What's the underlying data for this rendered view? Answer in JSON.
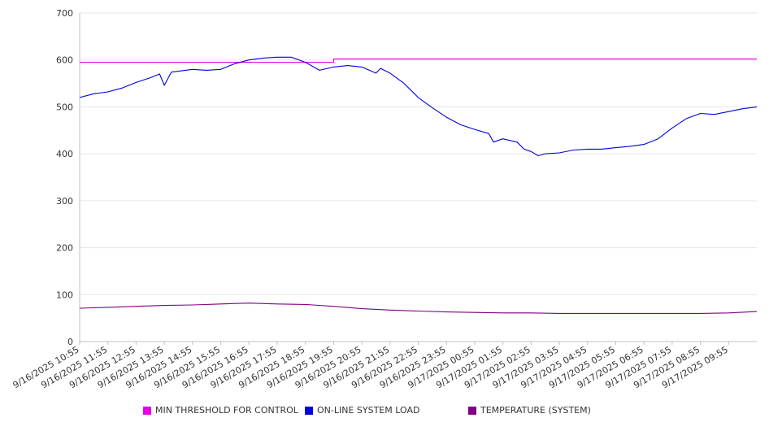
{
  "chart_data": {
    "type": "line",
    "ylim": [
      0,
      700
    ],
    "yticks": [
      0,
      100,
      200,
      300,
      400,
      500,
      600,
      700
    ],
    "xlim": [
      "9/16/2025 10:55",
      "9/17/2025 10:55"
    ],
    "xtick_labels": [
      "9/16/2025 10:55",
      "9/16/2025 11:55",
      "9/16/2025 12:55",
      "9/16/2025 13:55",
      "9/16/2025 14:55",
      "9/16/2025 15:55",
      "9/16/2025 16:55",
      "9/16/2025 17:55",
      "9/16/2025 18:55",
      "9/16/2025 19:55",
      "9/16/2025 20:55",
      "9/16/2025 21:55",
      "9/16/2025 22:55",
      "9/16/2025 23:55",
      "9/17/2025 00:55",
      "9/17/2025 01:55",
      "9/17/2025 02:55",
      "9/17/2025 03:55",
      "9/17/2025 04:55",
      "9/17/2025 05:55",
      "9/17/2025 06:55",
      "9/17/2025 07:55",
      "9/17/2025 08:55",
      "9/17/2025 09:55"
    ],
    "grid": true,
    "legend_position": "bottom",
    "series": [
      {
        "name": "MIN THRESHOLD FOR CONTROL",
        "color": "#e600e6",
        "points": [
          [
            "9/16/2025 10:55",
            595
          ],
          [
            "9/16/2025 19:55",
            595
          ],
          [
            "9/16/2025 19:55",
            602
          ],
          [
            "9/17/2025 10:55",
            602
          ]
        ]
      },
      {
        "name": "ON-LINE SYSTEM LOAD",
        "color": "#0000dd",
        "points": [
          [
            "9/16/2025 10:55",
            520
          ],
          [
            "9/16/2025 11:25",
            528
          ],
          [
            "9/16/2025 11:55",
            532
          ],
          [
            "9/16/2025 12:25",
            540
          ],
          [
            "9/16/2025 12:55",
            552
          ],
          [
            "9/16/2025 13:25",
            562
          ],
          [
            "9/16/2025 13:45",
            570
          ],
          [
            "9/16/2025 13:55",
            546
          ],
          [
            "9/16/2025 14:10",
            574
          ],
          [
            "9/16/2025 14:55",
            580
          ],
          [
            "9/16/2025 15:25",
            578
          ],
          [
            "9/16/2025 15:55",
            580
          ],
          [
            "9/16/2025 16:25",
            592
          ],
          [
            "9/16/2025 16:55",
            600
          ],
          [
            "9/16/2025 17:25",
            604
          ],
          [
            "9/16/2025 17:55",
            606
          ],
          [
            "9/16/2025 18:25",
            606
          ],
          [
            "9/16/2025 18:55",
            595
          ],
          [
            "9/16/2025 19:25",
            578
          ],
          [
            "9/16/2025 19:55",
            585
          ],
          [
            "9/16/2025 20:25",
            588
          ],
          [
            "9/16/2025 20:55",
            585
          ],
          [
            "9/16/2025 21:25",
            572
          ],
          [
            "9/16/2025 21:35",
            582
          ],
          [
            "9/16/2025 21:55",
            572
          ],
          [
            "9/16/2025 22:25",
            550
          ],
          [
            "9/16/2025 22:55",
            520
          ],
          [
            "9/16/2025 23:25",
            498
          ],
          [
            "9/16/2025 23:55",
            478
          ],
          [
            "9/17/2025 00:25",
            462
          ],
          [
            "9/17/2025 00:55",
            452
          ],
          [
            "9/17/2025 01:25",
            443
          ],
          [
            "9/17/2025 01:35",
            425
          ],
          [
            "9/17/2025 01:55",
            432
          ],
          [
            "9/17/2025 02:25",
            425
          ],
          [
            "9/17/2025 02:40",
            410
          ],
          [
            "9/17/2025 02:55",
            405
          ],
          [
            "9/17/2025 03:10",
            396
          ],
          [
            "9/17/2025 03:25",
            400
          ],
          [
            "9/17/2025 03:55",
            402
          ],
          [
            "9/17/2025 04:25",
            408
          ],
          [
            "9/17/2025 04:55",
            410
          ],
          [
            "9/17/2025 05:25",
            410
          ],
          [
            "9/17/2025 05:55",
            413
          ],
          [
            "9/17/2025 06:25",
            416
          ],
          [
            "9/17/2025 06:55",
            420
          ],
          [
            "9/17/2025 07:25",
            432
          ],
          [
            "9/17/2025 07:55",
            455
          ],
          [
            "9/17/2025 08:25",
            475
          ],
          [
            "9/17/2025 08:55",
            486
          ],
          [
            "9/17/2025 09:25",
            484
          ],
          [
            "9/17/2025 09:55",
            490
          ],
          [
            "9/17/2025 10:25",
            496
          ],
          [
            "9/17/2025 10:55",
            500
          ]
        ]
      },
      {
        "name": "TEMPERATURE (SYSTEM)",
        "color": "#800080",
        "points": [
          [
            "9/16/2025 10:55",
            71
          ],
          [
            "9/16/2025 11:55",
            73
          ],
          [
            "9/16/2025 12:55",
            75
          ],
          [
            "9/16/2025 13:55",
            77
          ],
          [
            "9/16/2025 14:55",
            78
          ],
          [
            "9/16/2025 15:55",
            80
          ],
          [
            "9/16/2025 16:55",
            82
          ],
          [
            "9/16/2025 17:55",
            80
          ],
          [
            "9/16/2025 18:55",
            79
          ],
          [
            "9/16/2025 19:55",
            75
          ],
          [
            "9/16/2025 20:55",
            70
          ],
          [
            "9/16/2025 21:55",
            67
          ],
          [
            "9/16/2025 22:55",
            65
          ],
          [
            "9/16/2025 23:55",
            63
          ],
          [
            "9/17/2025 00:55",
            62
          ],
          [
            "9/17/2025 01:55",
            61
          ],
          [
            "9/17/2025 02:55",
            61
          ],
          [
            "9/17/2025 03:55",
            60
          ],
          [
            "9/17/2025 04:55",
            60
          ],
          [
            "9/17/2025 05:55",
            60
          ],
          [
            "9/17/2025 06:55",
            60
          ],
          [
            "9/17/2025 07:55",
            60
          ],
          [
            "9/17/2025 08:55",
            60
          ],
          [
            "9/17/2025 09:55",
            61
          ],
          [
            "9/17/2025 10:55",
            64
          ]
        ]
      }
    ]
  }
}
